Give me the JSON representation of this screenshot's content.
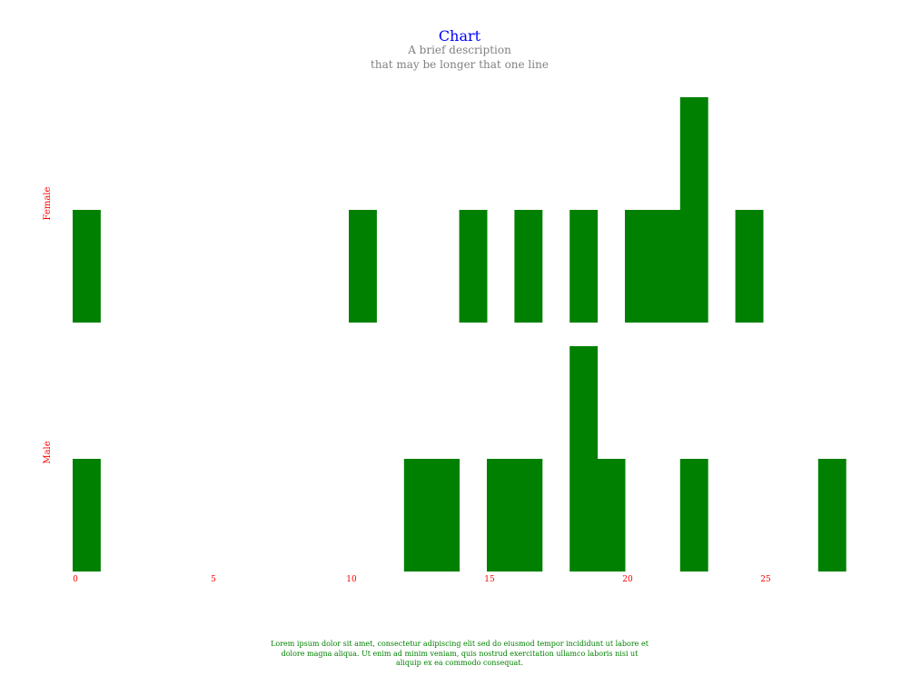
{
  "chart_data": {
    "type": "bar",
    "title": "Chart",
    "subtitle_lines": [
      "A brief description",
      "that may be longer that one line"
    ],
    "caption": "Lorem ipsum dolor sit amet, consectetur adipiscing elit sed do eiusmod tempor incididunt ut labore et dolore magna aliqua. Ut enim ad minim veniam, quis nostrud exercitation ullamco laboris nisi ut aliquip ex ea commodo consequat.",
    "x_ticks": [
      0,
      5,
      10,
      15,
      20,
      25
    ],
    "xlim": [
      0,
      28
    ],
    "bin_width": 1,
    "grid": false,
    "colors": {
      "bar": "#008000",
      "title": "#0000ff",
      "subtitle": "#808080",
      "labels": "#ff0000",
      "caption": "#008000"
    },
    "facets": [
      {
        "name": "Female",
        "ylim": [
          0,
          2
        ],
        "bins": [
          {
            "x": 0,
            "count": 1
          },
          {
            "x": 10,
            "count": 1
          },
          {
            "x": 14,
            "count": 1
          },
          {
            "x": 16,
            "count": 1
          },
          {
            "x": 18,
            "count": 1
          },
          {
            "x": 20,
            "count": 1
          },
          {
            "x": 21,
            "count": 1
          },
          {
            "x": 22,
            "count": 2
          },
          {
            "x": 24,
            "count": 1
          }
        ]
      },
      {
        "name": "Male",
        "ylim": [
          0,
          2
        ],
        "bins": [
          {
            "x": 0,
            "count": 1
          },
          {
            "x": 12,
            "count": 1
          },
          {
            "x": 13,
            "count": 1
          },
          {
            "x": 15,
            "count": 1
          },
          {
            "x": 16,
            "count": 1
          },
          {
            "x": 18,
            "count": 2
          },
          {
            "x": 19,
            "count": 1
          },
          {
            "x": 22,
            "count": 1
          },
          {
            "x": 27,
            "count": 1
          }
        ]
      }
    ]
  }
}
